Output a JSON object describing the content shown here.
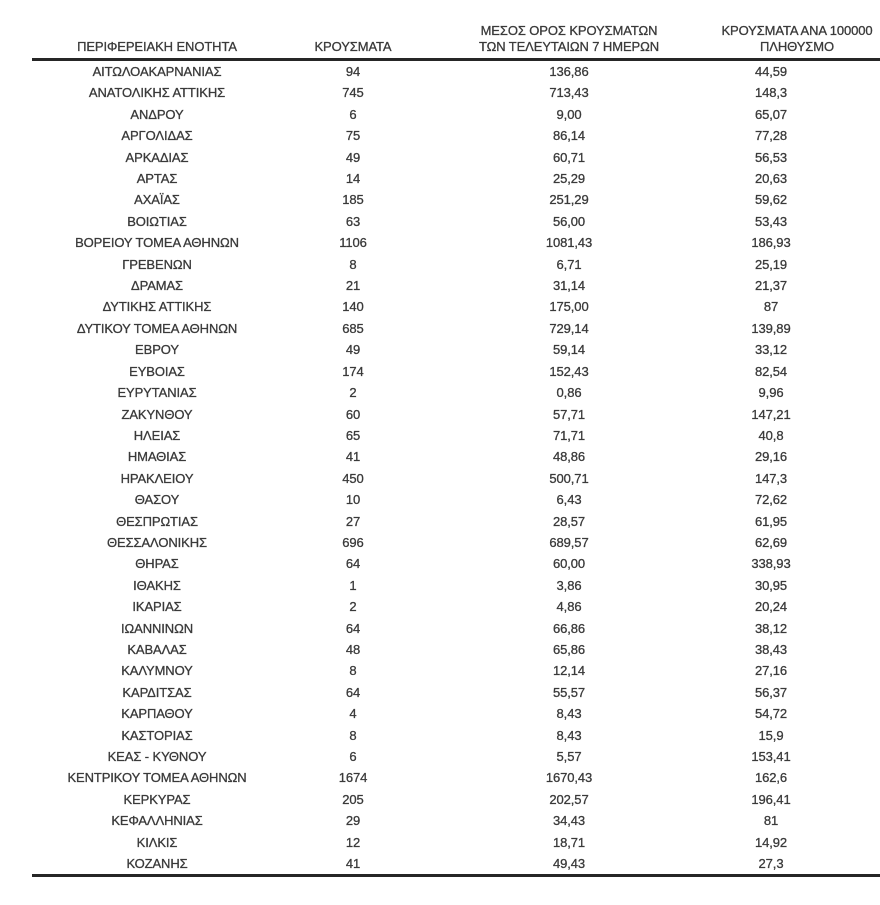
{
  "colors": {
    "background": "#ffffff",
    "text": "#3a3a3a",
    "rule": "#262626"
  },
  "table": {
    "header": {
      "region": "ΠΕΡΙΦΕΡΕΙΑΚΗ ΕΝΟΤΗΤΑ",
      "cases": "ΚΡΟΥΣΜΑΤΑ",
      "avg7_line1": "ΜΕΣΟΣ ΟΡΟΣ ΚΡΟΥΣΜΑΤΩΝ",
      "avg7_line2": "ΤΩΝ ΤΕΛΕΥΤΑΙΩΝ 7 ΗΜΕΡΩΝ",
      "per100k_line1": "ΚΡΟΥΣΜΑΤΑ ΑΝΑ 100000",
      "per100k_line2": "ΠΛΗΘΥΣΜΟ"
    },
    "rows": [
      [
        "ΑΙΤΩΛΟΑΚΑΡΝΑΝΙΑΣ",
        "94",
        "136,86",
        "44,59"
      ],
      [
        "ΑΝΑΤΟΛΙΚΗΣ ΑΤΤΙΚΗΣ",
        "745",
        "713,43",
        "148,3"
      ],
      [
        "ΑΝΔΡΟΥ",
        "6",
        "9,00",
        "65,07"
      ],
      [
        "ΑΡΓΟΛΙΔΑΣ",
        "75",
        "86,14",
        "77,28"
      ],
      [
        "ΑΡΚΑΔΙΑΣ",
        "49",
        "60,71",
        "56,53"
      ],
      [
        "ΑΡΤΑΣ",
        "14",
        "25,29",
        "20,63"
      ],
      [
        "ΑΧΑΪΑΣ",
        "185",
        "251,29",
        "59,62"
      ],
      [
        "ΒΟΙΩΤΙΑΣ",
        "63",
        "56,00",
        "53,43"
      ],
      [
        "ΒΟΡΕΙΟΥ ΤΟΜΕΑ ΑΘΗΝΩΝ",
        "1106",
        "1081,43",
        "186,93"
      ],
      [
        "ΓΡΕΒΕΝΩΝ",
        "8",
        "6,71",
        "25,19"
      ],
      [
        "ΔΡΑΜΑΣ",
        "21",
        "31,14",
        "21,37"
      ],
      [
        "ΔΥΤΙΚΗΣ ΑΤΤΙΚΗΣ",
        "140",
        "175,00",
        "87"
      ],
      [
        "ΔΥΤΙΚΟΥ ΤΟΜΕΑ ΑΘΗΝΩΝ",
        "685",
        "729,14",
        "139,89"
      ],
      [
        "ΕΒΡΟΥ",
        "49",
        "59,14",
        "33,12"
      ],
      [
        "ΕΥΒΟΙΑΣ",
        "174",
        "152,43",
        "82,54"
      ],
      [
        "ΕΥΡΥΤΑΝΙΑΣ",
        "2",
        "0,86",
        "9,96"
      ],
      [
        "ΖΑΚΥΝΘΟΥ",
        "60",
        "57,71",
        "147,21"
      ],
      [
        "ΗΛΕΙΑΣ",
        "65",
        "71,71",
        "40,8"
      ],
      [
        "ΗΜΑΘΙΑΣ",
        "41",
        "48,86",
        "29,16"
      ],
      [
        "ΗΡΑΚΛΕΙΟΥ",
        "450",
        "500,71",
        "147,3"
      ],
      [
        "ΘΑΣΟΥ",
        "10",
        "6,43",
        "72,62"
      ],
      [
        "ΘΕΣΠΡΩΤΙΑΣ",
        "27",
        "28,57",
        "61,95"
      ],
      [
        "ΘΕΣΣΑΛΟΝΙΚΗΣ",
        "696",
        "689,57",
        "62,69"
      ],
      [
        "ΘΗΡΑΣ",
        "64",
        "60,00",
        "338,93"
      ],
      [
        "ΙΘΑΚΗΣ",
        "1",
        "3,86",
        "30,95"
      ],
      [
        "ΙΚΑΡΙΑΣ",
        "2",
        "4,86",
        "20,24"
      ],
      [
        "ΙΩΑΝΝΙΝΩΝ",
        "64",
        "66,86",
        "38,12"
      ],
      [
        "ΚΑΒΑΛΑΣ",
        "48",
        "65,86",
        "38,43"
      ],
      [
        "ΚΑΛΥΜΝΟΥ",
        "8",
        "12,14",
        "27,16"
      ],
      [
        "ΚΑΡΔΙΤΣΑΣ",
        "64",
        "55,57",
        "56,37"
      ],
      [
        "ΚΑΡΠΑΘΟΥ",
        "4",
        "8,43",
        "54,72"
      ],
      [
        "ΚΑΣΤΟΡΙΑΣ",
        "8",
        "8,43",
        "15,9"
      ],
      [
        "ΚΕΑΣ - ΚΥΘΝΟΥ",
        "6",
        "5,57",
        "153,41"
      ],
      [
        "ΚΕΝΤΡΙΚΟΥ ΤΟΜΕΑ ΑΘΗΝΩΝ",
        "1674",
        "1670,43",
        "162,6"
      ],
      [
        "ΚΕΡΚΥΡΑΣ",
        "205",
        "202,57",
        "196,41"
      ],
      [
        "ΚΕΦΑΛΛΗΝΙΑΣ",
        "29",
        "34,43",
        "81"
      ],
      [
        "ΚΙΛΚΙΣ",
        "12",
        "18,71",
        "14,92"
      ],
      [
        "ΚΟΖΑΝΗΣ",
        "41",
        "49,43",
        "27,3"
      ]
    ]
  }
}
